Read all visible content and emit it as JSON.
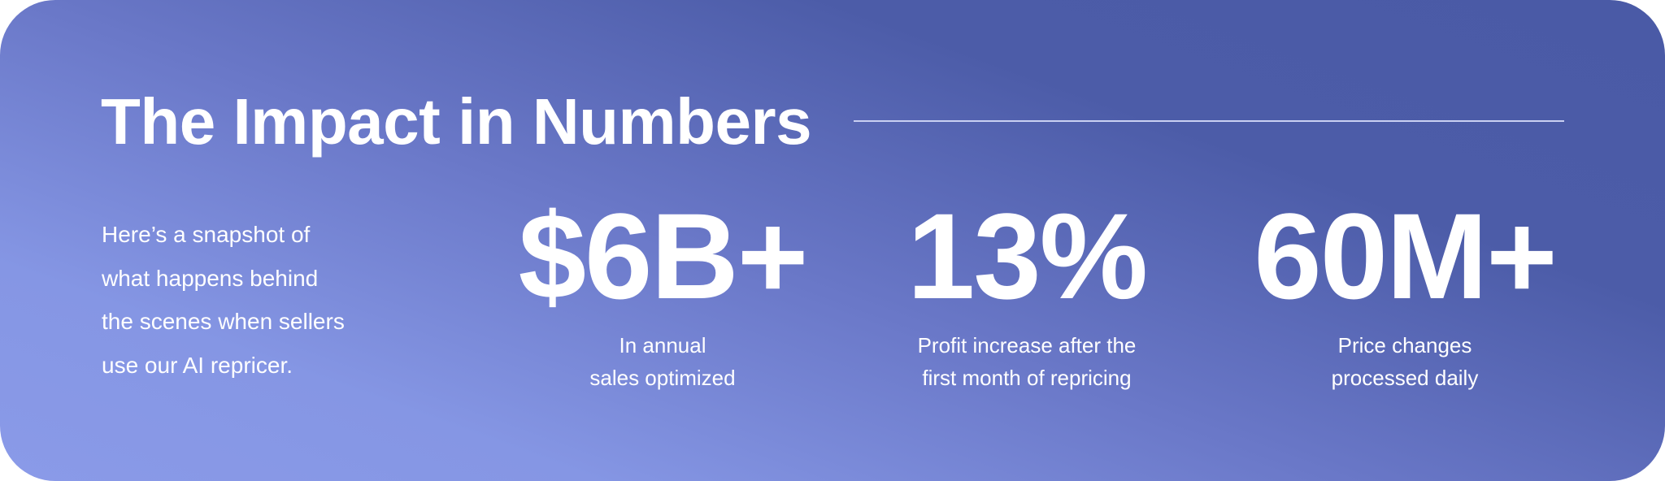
{
  "title": "The Impact in Numbers",
  "intro": [
    "Here’s a snapshot of",
    "what happens behind",
    "the scenes when sellers",
    "use our AI repricer."
  ],
  "stats": [
    {
      "value": "$6B+",
      "caption": [
        "In annual",
        "sales optimized"
      ]
    },
    {
      "value": "13%",
      "caption": [
        "Profit increase after the",
        "first month of repricing"
      ]
    },
    {
      "value": "60M+",
      "caption": [
        "Price changes",
        "processed daily"
      ]
    }
  ],
  "colors": {
    "gradient_dark": "#4a5aa6",
    "gradient_light": "#8a9ae8",
    "text": "#ffffff"
  }
}
